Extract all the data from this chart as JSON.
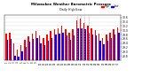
{
  "title": "Milwaukee Weather Barometric Pressure",
  "subtitle": "Daily High/Low",
  "ylim": [
    28.6,
    30.7
  ],
  "yticks": [
    28.8,
    29.0,
    29.2,
    29.4,
    29.6,
    29.8,
    30.0,
    30.2,
    30.4,
    30.6
  ],
  "bar_width": 0.35,
  "high_color": "#ff0000",
  "low_color": "#0000ff",
  "dashed_color": "#aaaaaa",
  "bg_color": "#ffffff",
  "legend_high": "High",
  "legend_low": "Low",
  "days": [
    1,
    2,
    3,
    4,
    5,
    6,
    7,
    8,
    9,
    10,
    11,
    12,
    13,
    14,
    15,
    16,
    17,
    18,
    19,
    20,
    21,
    22,
    23,
    24,
    25,
    26,
    27,
    28,
    29,
    30,
    31
  ],
  "xlabels": [
    "1",
    "2",
    "3",
    "4",
    "5",
    "6",
    "7",
    "8",
    "9",
    "10",
    "11",
    "12",
    "13",
    "14",
    "15",
    "16",
    "17",
    "18",
    "19",
    "20",
    "21",
    "22",
    "23",
    "24",
    "25",
    "26",
    "27",
    "28",
    "29",
    "30",
    "31"
  ],
  "highs": [
    29.85,
    29.9,
    29.4,
    29.1,
    29.3,
    29.55,
    29.7,
    29.85,
    29.95,
    29.75,
    29.65,
    29.8,
    29.95,
    30.05,
    30.1,
    30.2,
    30.05,
    29.9,
    30.05,
    30.45,
    30.55,
    30.35,
    30.2,
    30.1,
    30.0,
    29.85,
    29.65,
    29.8,
    29.9,
    30.05,
    30.15
  ],
  "lows": [
    29.55,
    29.6,
    28.8,
    28.75,
    29.0,
    29.2,
    29.45,
    29.6,
    29.65,
    29.4,
    29.3,
    29.5,
    29.65,
    29.8,
    29.85,
    29.9,
    29.75,
    29.55,
    29.75,
    30.1,
    30.1,
    30.05,
    29.9,
    29.8,
    29.75,
    29.5,
    29.35,
    29.5,
    29.65,
    29.8,
    29.9
  ],
  "dashed_lines": [
    19,
    20,
    21,
    22
  ]
}
